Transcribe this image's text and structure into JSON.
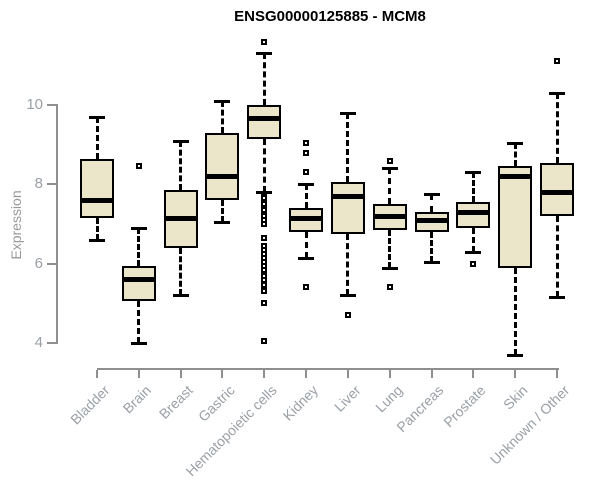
{
  "chart_data": {
    "type": "boxplot",
    "title": "ENSG00000125885 - MCM8",
    "ylabel": "Expression",
    "xlabel": "",
    "ylim": [
      4,
      10
    ],
    "yticks": [
      4,
      6,
      8,
      10
    ],
    "grid": false,
    "legend": "none",
    "box_fill": "#EBE5C9",
    "stroke_color": "#000000",
    "axis_color": "#8f8f8f",
    "label_color": "#9aa0a6",
    "categories": [
      "Bladder",
      "Brain",
      "Breast",
      "Gastric",
      "Hematopoietic cells",
      "Kidney",
      "Liver",
      "Lung",
      "Pancreas",
      "Prostate",
      "Skin",
      "Unknown / Other"
    ],
    "series": [
      {
        "label": "Bladder",
        "whisker_low": 6.6,
        "q1": 7.15,
        "median": 7.6,
        "q3": 8.65,
        "whisker_high": 9.7,
        "outliers": []
      },
      {
        "label": "Brain",
        "whisker_low": 4.0,
        "q1": 5.05,
        "median": 5.6,
        "q3": 5.95,
        "whisker_high": 6.9,
        "outliers": [
          8.45
        ]
      },
      {
        "label": "Breast",
        "whisker_low": 5.2,
        "q1": 6.4,
        "median": 7.15,
        "q3": 7.85,
        "whisker_high": 9.1,
        "outliers": []
      },
      {
        "label": "Gastric",
        "whisker_low": 7.05,
        "q1": 7.6,
        "median": 8.2,
        "q3": 9.3,
        "whisker_high": 10.1,
        "outliers": []
      },
      {
        "label": "Hematopoietic cells",
        "whisker_low": 7.8,
        "q1": 9.15,
        "median": 9.65,
        "q3": 10.0,
        "whisker_high": 11.3,
        "outliers": [
          11.6,
          7.7,
          7.65,
          7.55,
          7.5,
          7.4,
          7.35,
          7.25,
          7.2,
          7.1,
          7.0,
          6.65,
          6.45,
          6.35,
          6.25,
          6.15,
          6.05,
          5.95,
          5.85,
          5.7,
          5.6,
          5.45,
          5.3,
          5.0,
          4.05
        ]
      },
      {
        "label": "Kidney",
        "whisker_low": 6.15,
        "q1": 6.8,
        "median": 7.15,
        "q3": 7.4,
        "whisker_high": 8.0,
        "outliers": [
          9.05,
          8.8,
          8.3,
          5.4
        ]
      },
      {
        "label": "Liver",
        "whisker_low": 5.2,
        "q1": 6.75,
        "median": 7.7,
        "q3": 8.05,
        "whisker_high": 9.8,
        "outliers": [
          4.7
        ]
      },
      {
        "label": "Lung",
        "whisker_low": 5.9,
        "q1": 6.85,
        "median": 7.2,
        "q3": 7.5,
        "whisker_high": 8.4,
        "outliers": [
          8.6,
          5.4
        ]
      },
      {
        "label": "Pancreas",
        "whisker_low": 6.05,
        "q1": 6.8,
        "median": 7.1,
        "q3": 7.3,
        "whisker_high": 7.75,
        "outliers": []
      },
      {
        "label": "Prostate",
        "whisker_low": 6.3,
        "q1": 6.9,
        "median": 7.3,
        "q3": 7.55,
        "whisker_high": 8.3,
        "outliers": [
          6.0
        ]
      },
      {
        "label": "Skin",
        "whisker_low": 3.7,
        "q1": 5.9,
        "median": 8.2,
        "q3": 8.45,
        "whisker_high": 9.05,
        "outliers": []
      },
      {
        "label": "Unknown / Other",
        "whisker_low": 5.15,
        "q1": 7.2,
        "median": 7.8,
        "q3": 8.55,
        "whisker_high": 10.3,
        "outliers": [
          11.1
        ]
      }
    ]
  }
}
